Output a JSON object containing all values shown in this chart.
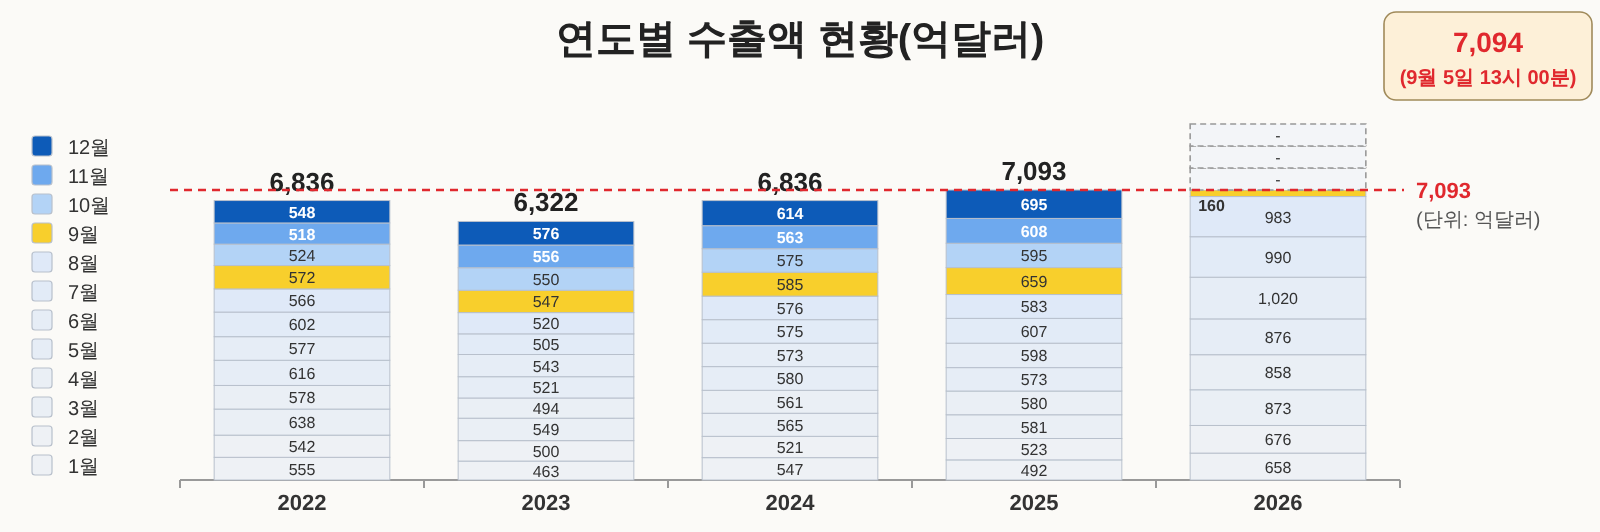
{
  "chart_data": {
    "type": "bar",
    "stacked": true,
    "title": "연도별 수출액 현황(억달러)",
    "categories": [
      "2022",
      "2023",
      "2024",
      "2025",
      "2026"
    ],
    "series": [
      {
        "name": "1월",
        "color": "#eef1f5",
        "values": [
          555,
          463,
          547,
          492,
          658
        ]
      },
      {
        "name": "2월",
        "color": "#eef1f5",
        "values": [
          542,
          500,
          521,
          523,
          676
        ]
      },
      {
        "name": "3월",
        "color": "#eaeff5",
        "values": [
          638,
          549,
          565,
          581,
          873
        ]
      },
      {
        "name": "4월",
        "color": "#eaeff5",
        "values": [
          578,
          494,
          561,
          580,
          858
        ]
      },
      {
        "name": "5월",
        "color": "#e6edf6",
        "values": [
          616,
          521,
          580,
          573,
          876
        ]
      },
      {
        "name": "6월",
        "color": "#e6edf6",
        "values": [
          577,
          543,
          573,
          598,
          1020
        ],
        "value_labels": [
          "577",
          "543",
          "573",
          "598",
          "1,020"
        ]
      },
      {
        "name": "7월",
        "color": "#e2ebf7",
        "values": [
          602,
          505,
          575,
          607,
          990
        ]
      },
      {
        "name": "8월",
        "color": "#dfe9f8",
        "values": [
          566,
          520,
          576,
          583,
          983
        ]
      },
      {
        "name": "9월",
        "color": "#f8cf2c",
        "values": [
          572,
          547,
          585,
          659,
          160
        ]
      },
      {
        "name": "10월",
        "color": "#b3d3f6",
        "values": [
          524,
          550,
          575,
          595,
          null
        ],
        "value_labels": [
          "524",
          "550",
          "575",
          "595",
          "-"
        ]
      },
      {
        "name": "11월",
        "color": "#6ea9ee",
        "values": [
          518,
          556,
          563,
          608,
          null
        ],
        "value_labels": [
          "518",
          "556",
          "563",
          "608",
          "-"
        ]
      },
      {
        "name": "12월",
        "color": "#0d5bb8",
        "values": [
          548,
          576,
          614,
          695,
          null
        ],
        "value_labels": [
          "548",
          "576",
          "614",
          "695",
          "-"
        ]
      }
    ],
    "data_labels": true,
    "totals": [
      "6,836",
      "6,322",
      "6,836",
      "7,093",
      null
    ],
    "ref_lines": [
      {
        "axis": "y",
        "value": 7093,
        "label": "7,093",
        "color": "#e0282e",
        "line_style": "dashed"
      }
    ],
    "annotations": [
      "7,094",
      "(9월 5일 13시 00분)",
      "(단위: 억달러)"
    ],
    "legend": "left"
  }
}
